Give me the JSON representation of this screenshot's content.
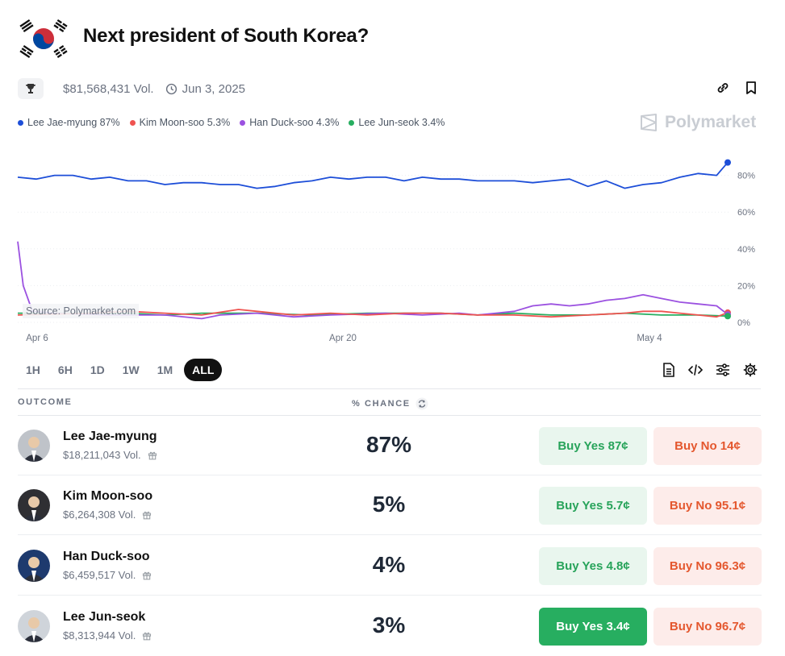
{
  "market": {
    "title": "Next president of South Korea?",
    "volume": "$81,568,431 Vol.",
    "date": "Jun 3, 2025"
  },
  "brand": {
    "name": "Polymarket"
  },
  "legend": [
    {
      "label": "Lee Jae-myung 87%",
      "color": "#1d4ed8"
    },
    {
      "label": "Kim Moon-soo 5.3%",
      "color": "#ef5350"
    },
    {
      "label": "Han Duck-soo 4.3%",
      "color": "#9b51e0"
    },
    {
      "label": "Lee Jun-seok 3.4%",
      "color": "#27ae60"
    }
  ],
  "chart_data": {
    "type": "line",
    "x_ticks": [
      "Apr 6",
      "Apr 20",
      "May 4"
    ],
    "y_ticks": [
      "80%",
      "60%",
      "40%",
      "20%",
      "0%"
    ],
    "ylim": [
      0,
      100
    ],
    "x_range_days": [
      0,
      38
    ],
    "source_label": "Source: Polymarket.com",
    "series": [
      {
        "name": "Lee Jae-myung",
        "color": "#1d4ed8",
        "points": [
          [
            0,
            79
          ],
          [
            1,
            78
          ],
          [
            2,
            80
          ],
          [
            3,
            80
          ],
          [
            4,
            78
          ],
          [
            5,
            79
          ],
          [
            6,
            77
          ],
          [
            7,
            77
          ],
          [
            8,
            75
          ],
          [
            9,
            76
          ],
          [
            10,
            76
          ],
          [
            11,
            75
          ],
          [
            12,
            75
          ],
          [
            13,
            73
          ],
          [
            14,
            74
          ],
          [
            15,
            76
          ],
          [
            16,
            77
          ],
          [
            17,
            79
          ],
          [
            18,
            78
          ],
          [
            19,
            79
          ],
          [
            20,
            79
          ],
          [
            21,
            77
          ],
          [
            22,
            79
          ],
          [
            23,
            78
          ],
          [
            24,
            78
          ],
          [
            25,
            77
          ],
          [
            26,
            77
          ],
          [
            27,
            77
          ],
          [
            28,
            76
          ],
          [
            29,
            77
          ],
          [
            30,
            78
          ],
          [
            31,
            74
          ],
          [
            32,
            77
          ],
          [
            33,
            73
          ],
          [
            34,
            75
          ],
          [
            35,
            76
          ],
          [
            36,
            79
          ],
          [
            37,
            81
          ],
          [
            38,
            80
          ],
          [
            38.6,
            87
          ]
        ]
      },
      {
        "name": "Kim Moon-soo",
        "color": "#ef5350",
        "points": [
          [
            0,
            4
          ],
          [
            4,
            5
          ],
          [
            6,
            6
          ],
          [
            8,
            5
          ],
          [
            10,
            4
          ],
          [
            12,
            7
          ],
          [
            13,
            6
          ],
          [
            15,
            4
          ],
          [
            17,
            5
          ],
          [
            19,
            4
          ],
          [
            21,
            5
          ],
          [
            23,
            5
          ],
          [
            25,
            4
          ],
          [
            27,
            4
          ],
          [
            29,
            3
          ],
          [
            31,
            4
          ],
          [
            33,
            5
          ],
          [
            34,
            6
          ],
          [
            35,
            6
          ],
          [
            36,
            5
          ],
          [
            37,
            4
          ],
          [
            38,
            3
          ],
          [
            38.6,
            5.3
          ]
        ]
      },
      {
        "name": "Han Duck-soo",
        "color": "#9b51e0",
        "points": [
          [
            0,
            44
          ],
          [
            0.3,
            20
          ],
          [
            0.8,
            6
          ],
          [
            2,
            5
          ],
          [
            5,
            4
          ],
          [
            8,
            4
          ],
          [
            10,
            2
          ],
          [
            11,
            4
          ],
          [
            13,
            5
          ],
          [
            15,
            3
          ],
          [
            17,
            4
          ],
          [
            20,
            5
          ],
          [
            22,
            4
          ],
          [
            24,
            5
          ],
          [
            25,
            4
          ],
          [
            26,
            5
          ],
          [
            27,
            6
          ],
          [
            28,
            9
          ],
          [
            29,
            10
          ],
          [
            30,
            9
          ],
          [
            31,
            10
          ],
          [
            32,
            12
          ],
          [
            33,
            13
          ],
          [
            34,
            15
          ],
          [
            35,
            13
          ],
          [
            36,
            11
          ],
          [
            37,
            10
          ],
          [
            38,
            9
          ],
          [
            38.6,
            4.3
          ]
        ]
      },
      {
        "name": "Lee Jun-seok",
        "color": "#27ae60",
        "points": [
          [
            0,
            5
          ],
          [
            3,
            5
          ],
          [
            6,
            5
          ],
          [
            8,
            4
          ],
          [
            10,
            5
          ],
          [
            13,
            5
          ],
          [
            16,
            4
          ],
          [
            19,
            5
          ],
          [
            21,
            5
          ],
          [
            23,
            5
          ],
          [
            25,
            4
          ],
          [
            27,
            5
          ],
          [
            29,
            4
          ],
          [
            31,
            4
          ],
          [
            33,
            5
          ],
          [
            35,
            4
          ],
          [
            37,
            4
          ],
          [
            38.6,
            3.4
          ]
        ]
      }
    ]
  },
  "ranges": [
    "1H",
    "6H",
    "1D",
    "1W",
    "1M",
    "ALL"
  ],
  "selected_range": "ALL",
  "table": {
    "outcome_header": "OUTCOME",
    "chance_header": "% CHANCE",
    "rows": [
      {
        "name": "Lee Jae-myung",
        "volume": "$18,211,043 Vol.",
        "chance": "87%",
        "buy_yes": "Buy Yes 87¢",
        "buy_no": "Buy No 14¢",
        "avatar_color": "#bfc3c9"
      },
      {
        "name": "Kim Moon-soo",
        "volume": "$6,264,308 Vol.",
        "chance": "5%",
        "buy_yes": "Buy Yes 5.7¢",
        "buy_no": "Buy No 95.1¢",
        "avatar_color": "#2f2f33"
      },
      {
        "name": "Han Duck-soo",
        "volume": "$6,459,517 Vol.",
        "chance": "4%",
        "buy_yes": "Buy Yes 4.8¢",
        "buy_no": "Buy No 96.3¢",
        "avatar_color": "#1e3a6e"
      },
      {
        "name": "Lee Jun-seok",
        "volume": "$8,313,944 Vol.",
        "chance": "3%",
        "buy_yes": "Buy Yes 3.4¢",
        "buy_no": "Buy No 96.7¢",
        "avatar_color": "#cfd4da"
      }
    ]
  }
}
